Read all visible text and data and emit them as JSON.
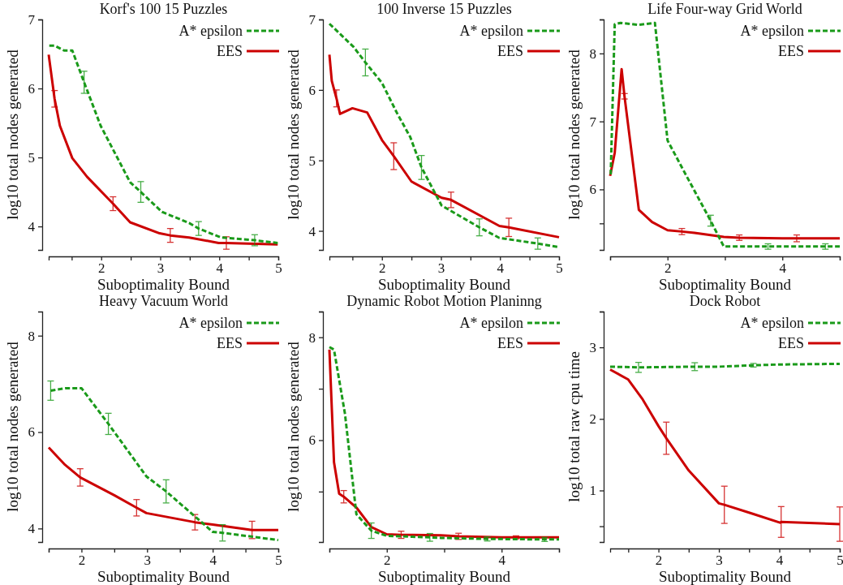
{
  "chart_data": [
    {
      "type": "line",
      "title": "Korf's 100 15 Puzzles",
      "xlabel": "Suboptimality Bound",
      "ylabel": "log10 total nodes generated",
      "legend": "top right",
      "xlim": [
        1.11,
        5
      ],
      "xticks": [
        {
          "value": 1.5,
          "label": null
        },
        2,
        {
          "value": 2.5,
          "label": null
        },
        3,
        {
          "value": 3.5,
          "label": null
        },
        4,
        {
          "value": 4.5,
          "label": null
        },
        5
      ],
      "ylim": [
        3.66,
        7
      ],
      "yticks": [
        4,
        5,
        6,
        7
      ],
      "series": [
        {
          "name": "A* epsilon",
          "color": "#1a9a1a",
          "line_style": "dashed",
          "x": [
            1.12,
            1.21,
            1.37,
            1.51,
            1.71,
            1.99,
            2.49,
            2.67,
            3.03,
            3.49,
            3.65,
            4.03,
            4.6,
            4.99
          ],
          "values": [
            6.62,
            6.62,
            6.55,
            6.55,
            6.09,
            5.46,
            4.64,
            4.5,
            4.21,
            4.05,
            3.97,
            3.84,
            3.8,
            3.76
          ],
          "errors": [
            null,
            null,
            null,
            null,
            0.16,
            null,
            null,
            0.15,
            null,
            null,
            0.1,
            null,
            0.08,
            null
          ]
        },
        {
          "name": "EES",
          "color": "#cc0000",
          "line_style": "solid",
          "x": [
            1.11,
            1.21,
            1.3,
            1.51,
            1.76,
            2.2,
            2.49,
            2.99,
            3.17,
            3.49,
            3.99,
            4.12,
            4.99
          ],
          "values": [
            6.49,
            5.85,
            5.46,
            4.99,
            4.72,
            4.33,
            4.06,
            3.9,
            3.87,
            3.84,
            3.76,
            3.76,
            3.74
          ],
          "errors": [
            null,
            0.12,
            null,
            null,
            null,
            0.1,
            null,
            null,
            0.1,
            null,
            null,
            0.09,
            null
          ]
        }
      ]
    },
    {
      "type": "line",
      "title": "100 Inverse 15 Puzzles",
      "xlabel": "Suboptimality Bound",
      "ylabel": "log10 total nodes generated",
      "legend": "top right",
      "xlim": [
        1.11,
        5
      ],
      "xticks": [
        {
          "value": 1.5,
          "label": null
        },
        2,
        {
          "value": 2.5,
          "label": null
        },
        3,
        {
          "value": 3.5,
          "label": null
        },
        4,
        {
          "value": 4.5,
          "label": null
        },
        5
      ],
      "ylim": [
        3.73,
        7
      ],
      "yticks": [
        4,
        5,
        6,
        7
      ],
      "series": [
        {
          "name": "A* epsilon",
          "color": "#1a9a1a",
          "line_style": "dashed",
          "x": [
            1.11,
            1.52,
            1.72,
            2.0,
            2.25,
            2.48,
            2.67,
            3.01,
            3.65,
            3.99,
            4.64,
            5.0
          ],
          "values": [
            6.94,
            6.61,
            6.39,
            6.1,
            5.68,
            5.33,
            4.9,
            4.36,
            4.05,
            3.9,
            3.82,
            3.77
          ],
          "errors": [
            null,
            null,
            0.19,
            null,
            null,
            null,
            0.17,
            null,
            0.12,
            null,
            0.08,
            null
          ]
        },
        {
          "name": "EES",
          "color": "#cc0000",
          "line_style": "solid",
          "x": [
            1.11,
            1.15,
            1.23,
            1.29,
            1.5,
            1.75,
            2.0,
            2.2,
            2.5,
            3.01,
            3.17,
            3.99,
            4.15,
            5.0
          ],
          "values": [
            6.5,
            6.13,
            5.88,
            5.66,
            5.74,
            5.68,
            5.29,
            5.06,
            4.7,
            4.47,
            4.44,
            4.07,
            4.05,
            3.91
          ],
          "errors": [
            null,
            null,
            0.12,
            null,
            null,
            null,
            null,
            0.19,
            null,
            null,
            0.11,
            null,
            0.13,
            null
          ]
        }
      ]
    },
    {
      "type": "line",
      "title": "Life Four-way Grid World",
      "xlabel": "Suboptimality Bound",
      "ylabel": "log10 total nodes generated",
      "legend": "top right",
      "xlim": [
        1,
        5
      ],
      "xticks": [
        {
          "value": 1,
          "label": null
        },
        2,
        {
          "value": 3,
          "label": null
        },
        4,
        {
          "value": 5,
          "label": null
        }
      ],
      "ylim": [
        5.11,
        8.5
      ],
      "yticks": [
        {
          "value": 5.5,
          "label": null
        },
        6,
        7,
        8,
        {
          "value": 8.5,
          "label": null
        }
      ],
      "series": [
        {
          "name": "A* epsilon",
          "color": "#1a9a1a",
          "line_style": "dashed",
          "x": [
            1.01,
            1.08,
            1.18,
            1.5,
            1.78,
            2.0,
            2.29,
            2.75,
            2.98,
            3.75,
            4.75,
            5.0
          ],
          "values": [
            6.22,
            8.43,
            8.45,
            8.42,
            8.45,
            6.72,
            6.26,
            5.54,
            5.16,
            5.16,
            5.16,
            5.16
          ],
          "errors": [
            null,
            null,
            null,
            null,
            null,
            null,
            null,
            0.08,
            null,
            0.04,
            0.04,
            null
          ]
        },
        {
          "name": "EES",
          "color": "#cc0000",
          "line_style": "solid",
          "x": [
            1.0,
            1.08,
            1.2,
            1.25,
            1.5,
            1.73,
            2.0,
            2.25,
            2.47,
            2.98,
            3.25,
            4.0,
            4.25,
            5.0
          ],
          "values": [
            6.2,
            6.54,
            7.77,
            7.37,
            5.7,
            5.52,
            5.4,
            5.38,
            5.36,
            5.3,
            5.29,
            5.28,
            5.28,
            5.28
          ],
          "errors": [
            null,
            null,
            null,
            0.04,
            null,
            null,
            null,
            0.045,
            null,
            null,
            0.04,
            null,
            0.05,
            null
          ]
        }
      ]
    },
    {
      "type": "line",
      "title": "Heavy Vacuum World",
      "xlabel": "Suboptimality Bound",
      "ylabel": "log10 total nodes generated",
      "legend": "top right",
      "xlim": [
        1.5,
        5
      ],
      "xticks": [
        {
          "value": 1.5,
          "label": null
        },
        2,
        {
          "value": 2.5,
          "label": null
        },
        3,
        {
          "value": 3.5,
          "label": null
        },
        4,
        {
          "value": 4.5,
          "label": null
        },
        5
      ],
      "ylim": [
        3.72,
        8.5
      ],
      "yticks": [
        4,
        6,
        8
      ],
      "series": [
        {
          "name": "A* epsilon",
          "color": "#1a9a1a",
          "line_style": "dashed",
          "x": [
            1.53,
            1.75,
            2.0,
            2.41,
            2.99,
            3.29,
            4.0,
            4.15,
            5.0
          ],
          "values": [
            6.86,
            6.91,
            6.91,
            6.17,
            5.08,
            4.77,
            3.93,
            3.91,
            3.76
          ],
          "errors": [
            0.2,
            null,
            null,
            0.22,
            null,
            0.24,
            null,
            0.17,
            null
          ]
        },
        {
          "name": "EES",
          "color": "#cc0000",
          "line_style": "solid",
          "x": [
            1.5,
            1.75,
            1.98,
            2.5,
            2.84,
            2.99,
            3.73,
            4.0,
            4.6,
            5.0
          ],
          "values": [
            5.68,
            5.32,
            5.06,
            4.69,
            4.43,
            4.32,
            4.13,
            4.08,
            3.97,
            3.97
          ],
          "errors": [
            null,
            null,
            0.18,
            null,
            0.17,
            null,
            0.16,
            null,
            0.18,
            null
          ]
        }
      ]
    },
    {
      "type": "line",
      "title": "Dynamic Robot Motion Planinng",
      "xlabel": "Suboptimality Bound",
      "ylabel": "log10 total nodes generated",
      "legend": "top right",
      "xlim": [
        1,
        5
      ],
      "xticks": [
        {
          "value": 1,
          "label": null
        },
        2,
        {
          "value": 3,
          "label": null
        },
        4,
        {
          "value": 5,
          "label": null
        }
      ],
      "ylim": [
        4.02,
        8.5
      ],
      "yticks": [
        {
          "value": 5,
          "label": null
        },
        6,
        {
          "value": 7,
          "label": null
        },
        8,
        {
          "value": 8.5,
          "label": null
        }
      ],
      "series": [
        {
          "name": "A* epsilon",
          "color": "#1a9a1a",
          "line_style": "dashed",
          "x": [
            1.0,
            1.08,
            1.27,
            1.47,
            1.73,
            2.0,
            2.75,
            2.94,
            3.75,
            4.75,
            5.0
          ],
          "values": [
            7.81,
            7.76,
            6.52,
            4.56,
            4.24,
            4.14,
            4.11,
            4.1,
            4.08,
            4.07,
            4.07
          ],
          "errors": [
            null,
            null,
            null,
            null,
            0.15,
            null,
            0.075,
            null,
            0.04,
            0.04,
            null
          ]
        },
        {
          "name": "EES",
          "color": "#cc0000",
          "line_style": "solid",
          "x": [
            1.0,
            1.08,
            1.17,
            1.25,
            1.47,
            1.73,
            2.0,
            2.25,
            2.94,
            3.25,
            4.0,
            4.25,
            5.0
          ],
          "values": [
            7.76,
            5.57,
            4.96,
            4.9,
            4.69,
            4.31,
            4.17,
            4.16,
            4.15,
            4.13,
            4.11,
            4.11,
            4.11
          ],
          "errors": [
            null,
            null,
            null,
            0.12,
            null,
            null,
            null,
            0.07,
            null,
            0.06,
            null,
            0.03,
            null
          ]
        }
      ]
    },
    {
      "type": "line",
      "title": "Dock Robot",
      "xlabel": "Suboptimality Bound",
      "ylabel": "log10 total raw cpu time",
      "legend": "top right",
      "xlim": [
        1.2,
        5
      ],
      "xticks": [
        {
          "value": 1.5,
          "label": null
        },
        2,
        {
          "value": 2.5,
          "label": null
        },
        3,
        {
          "value": 3.5,
          "label": null
        },
        4,
        {
          "value": 4.5,
          "label": null
        },
        5
      ],
      "ylim": [
        0.28,
        3.5
      ],
      "yticks": [
        {
          "value": 0.5,
          "label": null
        },
        1,
        2,
        3,
        {
          "value": 3.5,
          "label": null
        }
      ],
      "series": [
        {
          "name": "A* epsilon",
          "color": "#1a9a1a",
          "line_style": "dashed",
          "x": [
            1.2,
            1.67,
            2.6,
            3.0,
            3.57,
            3.99,
            5.0
          ],
          "values": [
            2.73,
            2.72,
            2.73,
            2.73,
            2.75,
            2.76,
            2.77
          ],
          "errors": [
            null,
            0.07,
            0.055,
            null,
            0.025,
            null,
            null
          ]
        },
        {
          "name": "EES",
          "color": "#cc0000",
          "line_style": "solid",
          "x": [
            1.2,
            1.5,
            1.74,
            2.0,
            2.13,
            2.5,
            3.0,
            3.09,
            3.54,
            4.01,
            4.03,
            5.0
          ],
          "values": [
            2.69,
            2.55,
            2.27,
            1.9,
            1.73,
            1.28,
            0.82,
            0.8,
            0.68,
            0.55,
            0.56,
            0.53
          ],
          "errors": [
            null,
            null,
            null,
            null,
            0.225,
            null,
            null,
            0.26,
            null,
            null,
            0.215,
            0.24
          ]
        }
      ]
    }
  ]
}
